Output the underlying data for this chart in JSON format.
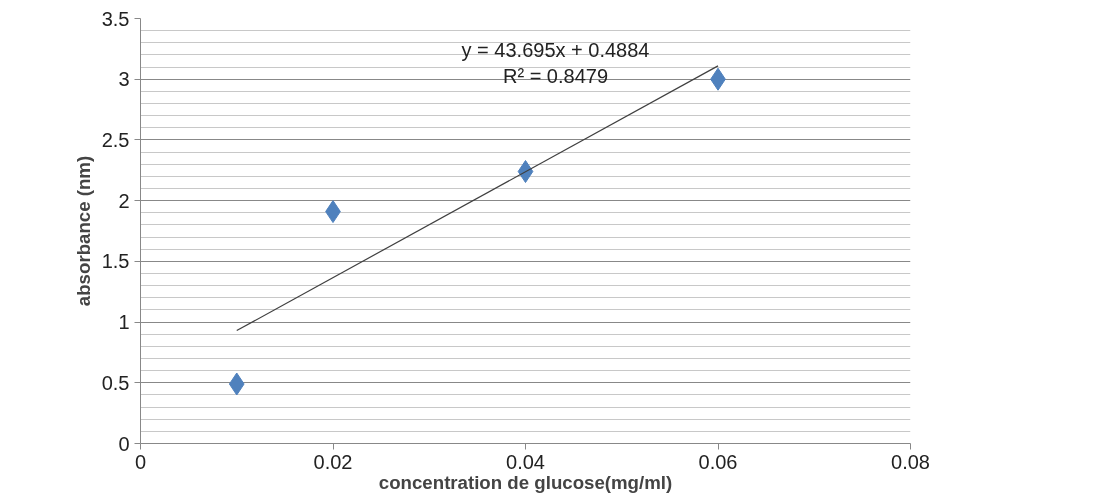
{
  "chart_data": {
    "type": "scatter",
    "xlabel": "concentration de glucose(mg/ml)",
    "ylabel": "absorbance (nm)",
    "x": [
      0.01,
      0.02,
      0.04,
      0.06
    ],
    "series": [
      {
        "color": "#4f81bd",
        "marker": "diamond",
        "values": [
          0.49,
          1.91,
          2.24,
          3.0
        ]
      },
      {
        "type": "line",
        "color": "#404040",
        "x": [
          0.01,
          0.06
        ],
        "values": [
          0.93,
          3.11
        ]
      }
    ],
    "annotations": [
      "y = 43.695x + 0.4884",
      "R² = 0.8479"
    ],
    "xlim": [
      0,
      0.08
    ],
    "xticks": [
      0,
      0.02,
      0.04,
      0.06,
      0.08
    ],
    "ylim": [
      0,
      3.5
    ],
    "yticks": [
      0,
      0.5,
      1,
      1.5,
      2,
      2.5,
      3,
      3.5
    ],
    "grid": "y"
  }
}
